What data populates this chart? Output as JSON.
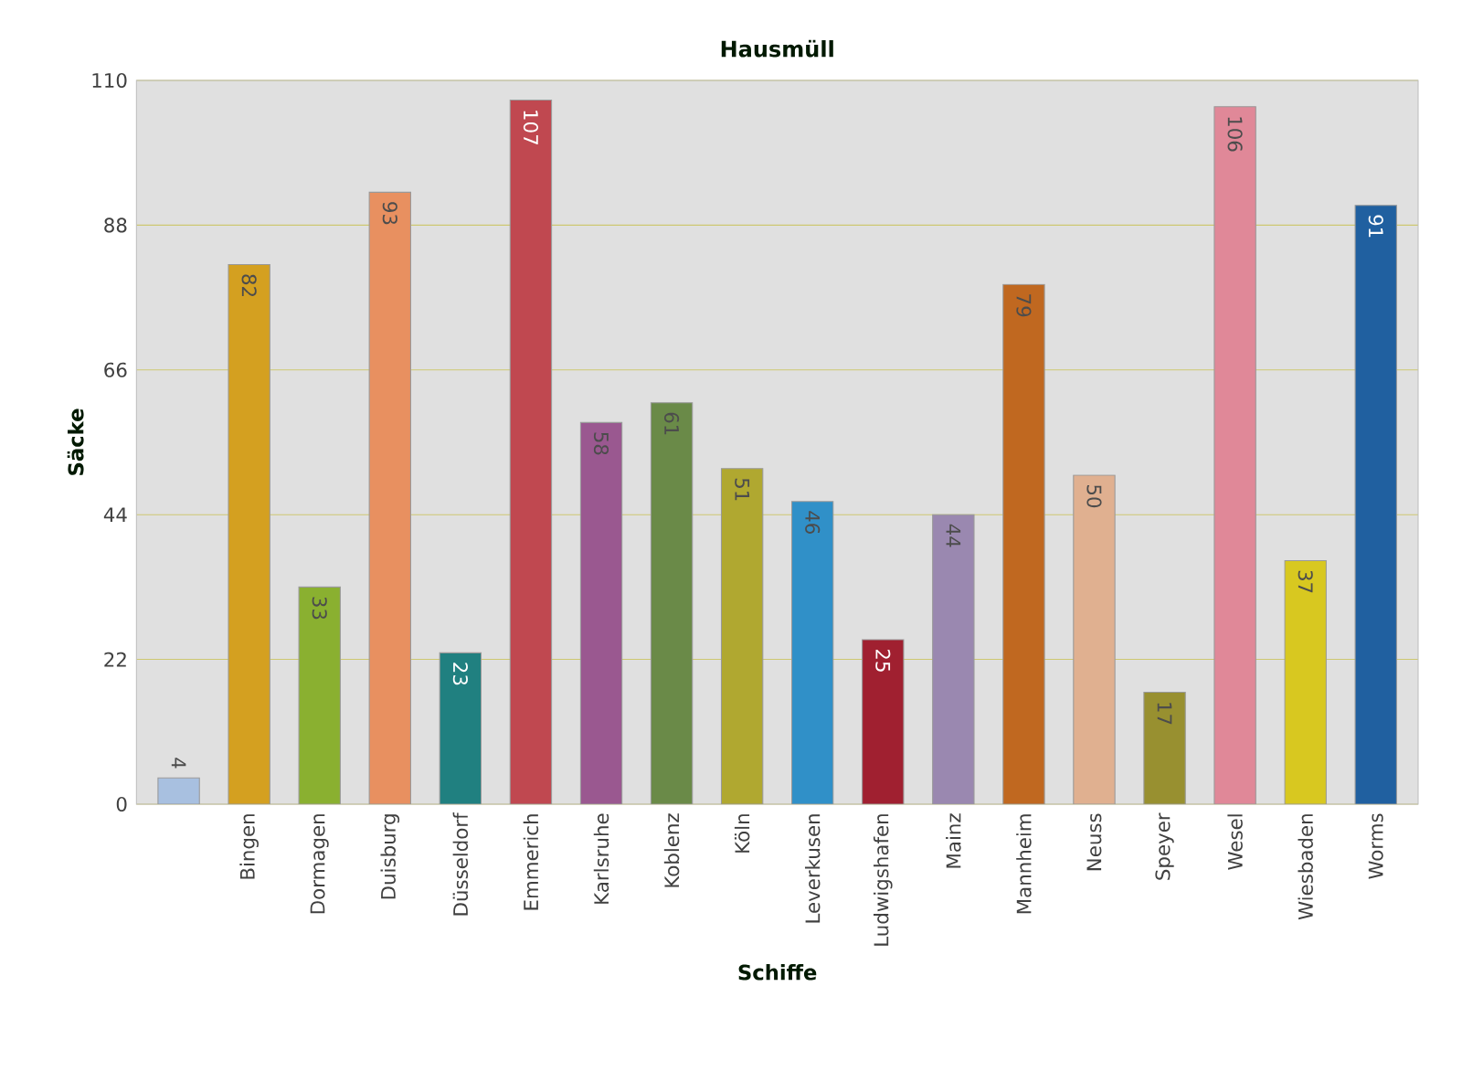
{
  "chart_data": {
    "type": "bar",
    "title": "Hausmüll",
    "xlabel": "Schiffe",
    "ylabel": "Säcke",
    "categories": [
      null,
      "Bingen",
      "Dormagen",
      "Duisburg",
      "Düsseldorf",
      "Emmerich",
      "Karlsruhe",
      "Koblenz",
      "Köln",
      "Leverkusen",
      "Ludwigshafen",
      "Mainz",
      "Mannheim",
      "Neuss",
      "Speyer",
      "Wesel",
      "Wiesbaden",
      "Worms"
    ],
    "values": [
      4,
      82,
      33,
      93,
      23,
      107,
      58,
      61,
      51,
      46,
      25,
      44,
      79,
      50,
      17,
      106,
      37,
      91
    ],
    "colors": [
      "#a8c0e0",
      "#d4a020",
      "#8ab030",
      "#e89060",
      "#208080",
      "#c04850",
      "#9a5890",
      "#6a8a48",
      "#b0a830",
      "#3090c8",
      "#a02030",
      "#9a88b0",
      "#c06820",
      "#e0b090",
      "#989030",
      "#e08898",
      "#d8c820",
      "#2060a0"
    ],
    "ylim": [
      0,
      110
    ],
    "yticks": [
      0,
      22,
      44,
      66,
      88,
      110
    ],
    "grid": "y",
    "data_labels": true
  }
}
